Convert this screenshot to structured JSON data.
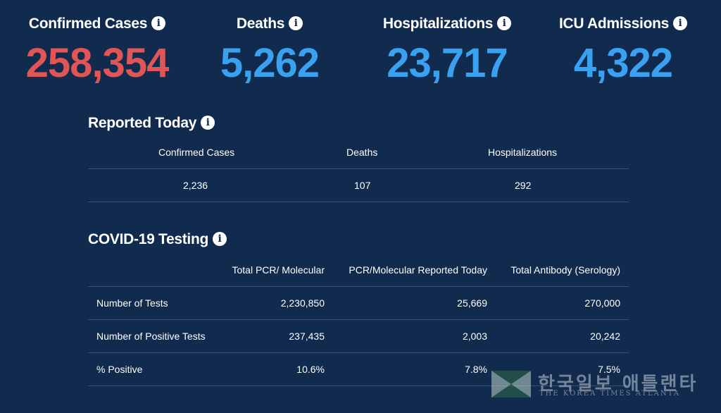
{
  "stats": [
    {
      "label": "Confirmed Cases",
      "value": "258,354",
      "color": "#e05555"
    },
    {
      "label": "Deaths",
      "value": "5,262",
      "color": "#3aa0f0"
    },
    {
      "label": "Hospitalizations",
      "value": "23,717",
      "color": "#3aa0f0"
    },
    {
      "label": "ICU Admissions",
      "value": "4,322",
      "color": "#3aa0f0"
    }
  ],
  "reported_today": {
    "title": "Reported Today",
    "headers": [
      "Confirmed Cases",
      "Deaths",
      "Hospitalizations"
    ],
    "values": [
      "2,236",
      "107",
      "292"
    ]
  },
  "testing": {
    "title": "COVID-19 Testing",
    "headers": [
      "Total PCR/ Molecular",
      "PCR/Molecular Reported Today",
      "Total Antibody (Serology)"
    ],
    "rows": [
      {
        "label": "Number of Tests",
        "values": [
          "2,230,850",
          "25,669",
          "270,000"
        ]
      },
      {
        "label": "Number of Positive Tests",
        "values": [
          "237,435",
          "2,003",
          "20,242"
        ]
      },
      {
        "label": "% Positive",
        "values": [
          "10.6%",
          "7.8%",
          "7.5%"
        ]
      }
    ]
  },
  "watermark": {
    "korean": "한국일보 애틀랜타",
    "english": "THE KOREA TIMES ATLANTA"
  },
  "icons": {
    "info": "info-icon"
  }
}
